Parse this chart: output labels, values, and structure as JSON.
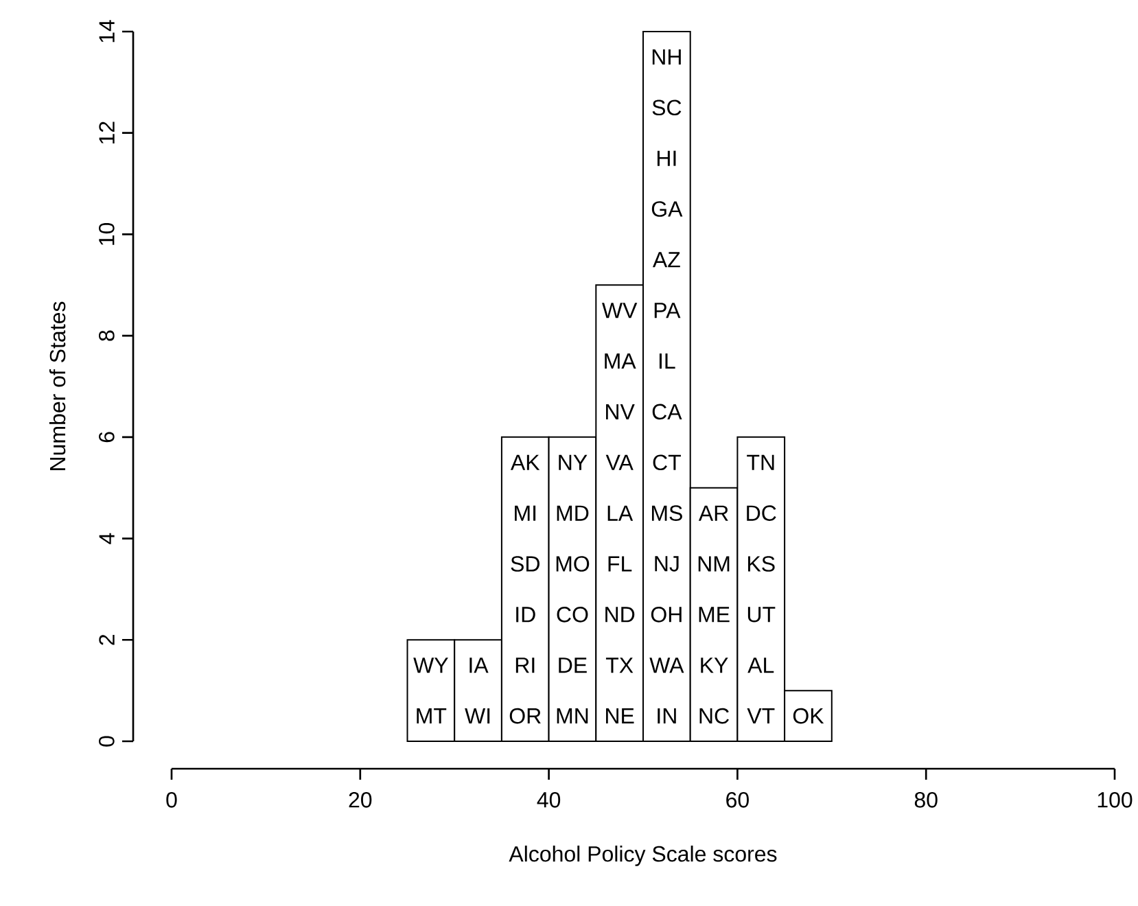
{
  "chart_data": {
    "type": "histogram",
    "xlabel": "Alcohol Policy Scale scores",
    "ylabel": "Number of States",
    "bins": [
      25,
      30,
      35,
      40,
      45,
      50,
      55,
      60,
      65,
      70
    ],
    "values": [
      2,
      2,
      6,
      6,
      9,
      14,
      5,
      6,
      1
    ],
    "color": "#ffffff",
    "xlim": [
      0,
      100
    ],
    "xticks": [
      0,
      20,
      40,
      60,
      80,
      100
    ],
    "ylim": [
      0,
      14
    ],
    "yticks": [
      0,
      2,
      4,
      6,
      8,
      10,
      12,
      14
    ],
    "annotations": [
      "MT",
      "WY",
      "WI",
      "IA",
      "OR",
      "RI",
      "ID",
      "SD",
      "MI",
      "AK",
      "MN",
      "DE",
      "CO",
      "MO",
      "MD",
      "NY",
      "NE",
      "TX",
      "ND",
      "FL",
      "LA",
      "VA",
      "NV",
      "MA",
      "WV",
      "IN",
      "WA",
      "OH",
      "NJ",
      "MS",
      "CT",
      "CA",
      "IL",
      "PA",
      "AZ",
      "GA",
      "HI",
      "SC",
      "NH",
      "NC",
      "KY",
      "ME",
      "NM",
      "AR",
      "VT",
      "AL",
      "UT",
      "KS",
      "DC",
      "TN",
      "OK"
    ]
  }
}
